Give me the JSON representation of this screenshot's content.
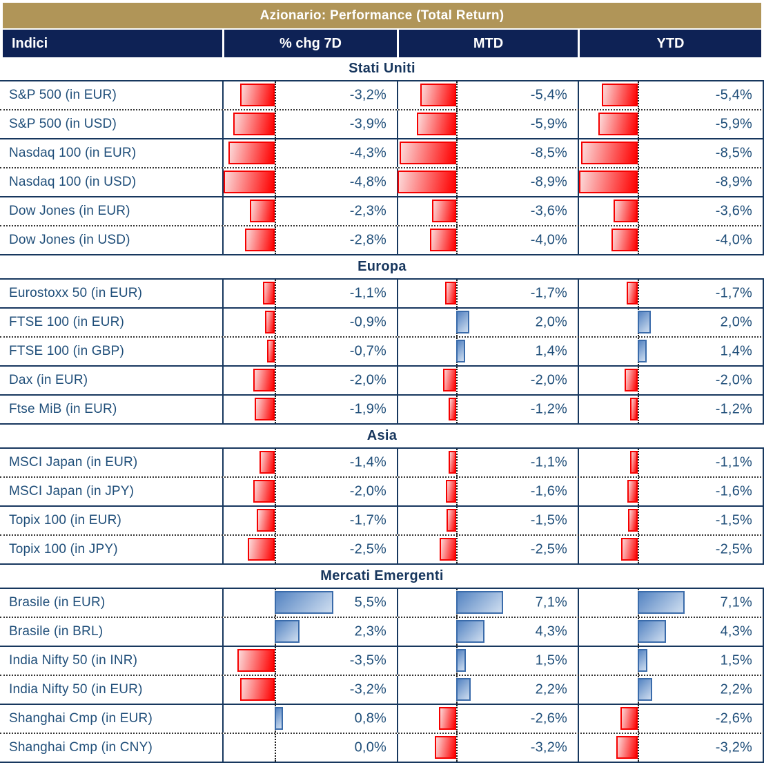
{
  "title": "Azionario: Performance (Total Return)",
  "columns": {
    "indici": "Indici",
    "chg7d": "% chg 7D",
    "mtd": "MTD",
    "ytd": "YTD"
  },
  "colors": {
    "gold_header": "#B09558",
    "navy_header_bg": "#0E2255",
    "grid_line_navy": "#17375E",
    "text_navy": "#1F4E79",
    "negative_bar": "#FE0000",
    "negative_bar_light": "#FCDADA",
    "positive_bar": "#5584C2",
    "positive_bar_light": "#CFDEF0"
  },
  "chart_data": {
    "type": "table",
    "title": "Azionario: Performance (Total Return)",
    "columns": [
      "Indici",
      "% chg 7D",
      "MTD",
      "YTD"
    ],
    "value_format": "percent, comma decimal separator; red bars = negative, blue bars = positive, drawn from dotted zero baseline",
    "sections": [
      {
        "title": "Stati Uniti",
        "rows": [
          {
            "label": "S&P 500 (in EUR)",
            "chg7d": -3.2,
            "chg7d_text": "-3,2%",
            "mtd": -5.4,
            "mtd_text": "-5,4%",
            "ytd": -5.4,
            "ytd_text": "-5,4%",
            "divider_after": "dotted"
          },
          {
            "label": "S&P 500 (in USD)",
            "chg7d": -3.9,
            "chg7d_text": "-3,9%",
            "mtd": -5.9,
            "mtd_text": "-5,9%",
            "ytd": -5.9,
            "ytd_text": "-5,9%",
            "divider_after": "solid"
          },
          {
            "label": "Nasdaq 100 (in EUR)",
            "chg7d": -4.3,
            "chg7d_text": "-4,3%",
            "mtd": -8.5,
            "mtd_text": "-8,5%",
            "ytd": -8.5,
            "ytd_text": "-8,5%",
            "divider_after": "dotted"
          },
          {
            "label": "Nasdaq 100 (in USD)",
            "chg7d": -4.8,
            "chg7d_text": "-4,8%",
            "mtd": -8.9,
            "mtd_text": "-8,9%",
            "ytd": -8.9,
            "ytd_text": "-8,9%",
            "divider_after": "solid"
          },
          {
            "label": "Dow Jones (in EUR)",
            "chg7d": -2.3,
            "chg7d_text": "-2,3%",
            "mtd": -3.6,
            "mtd_text": "-3,6%",
            "ytd": -3.6,
            "ytd_text": "-3,6%",
            "divider_after": "dotted"
          },
          {
            "label": "Dow Jones (in USD)",
            "chg7d": -2.8,
            "chg7d_text": "-2,8%",
            "mtd": -4.0,
            "mtd_text": "-4,0%",
            "ytd": -4.0,
            "ytd_text": "-4,0%",
            "divider_after": "solid"
          }
        ]
      },
      {
        "title": "Europa",
        "rows": [
          {
            "label": "Eurostoxx 50 (in EUR)",
            "chg7d": -1.1,
            "chg7d_text": "-1,1%",
            "mtd": -1.7,
            "mtd_text": "-1,7%",
            "ytd": -1.7,
            "ytd_text": "-1,7%",
            "divider_after": "solid"
          },
          {
            "label": "FTSE 100 (in EUR)",
            "chg7d": -0.9,
            "chg7d_text": "-0,9%",
            "mtd": 2.0,
            "mtd_text": "2,0%",
            "ytd": 2.0,
            "ytd_text": "2,0%",
            "divider_after": "dotted"
          },
          {
            "label": "FTSE 100 (in GBP)",
            "chg7d": -0.7,
            "chg7d_text": "-0,7%",
            "mtd": 1.4,
            "mtd_text": "1,4%",
            "ytd": 1.4,
            "ytd_text": "1,4%",
            "divider_after": "solid"
          },
          {
            "label": "Dax (in EUR)",
            "chg7d": -2.0,
            "chg7d_text": "-2,0%",
            "mtd": -2.0,
            "mtd_text": "-2,0%",
            "ytd": -2.0,
            "ytd_text": "-2,0%",
            "divider_after": "solid"
          },
          {
            "label": "Ftse MiB (in EUR)",
            "chg7d": -1.9,
            "chg7d_text": "-1,9%",
            "mtd": -1.2,
            "mtd_text": "-1,2%",
            "ytd": -1.2,
            "ytd_text": "-1,2%",
            "divider_after": "solid"
          }
        ]
      },
      {
        "title": "Asia",
        "rows": [
          {
            "label": "MSCI Japan (in EUR)",
            "chg7d": -1.4,
            "chg7d_text": "-1,4%",
            "mtd": -1.1,
            "mtd_text": "-1,1%",
            "ytd": -1.1,
            "ytd_text": "-1,1%",
            "divider_after": "dotted"
          },
          {
            "label": "MSCI Japan (in JPY)",
            "chg7d": -2.0,
            "chg7d_text": "-2,0%",
            "mtd": -1.6,
            "mtd_text": "-1,6%",
            "ytd": -1.6,
            "ytd_text": "-1,6%",
            "divider_after": "solid"
          },
          {
            "label": "Topix 100 (in EUR)",
            "chg7d": -1.7,
            "chg7d_text": "-1,7%",
            "mtd": -1.5,
            "mtd_text": "-1,5%",
            "ytd": -1.5,
            "ytd_text": "-1,5%",
            "divider_after": "dotted"
          },
          {
            "label": "Topix 100 (in JPY)",
            "chg7d": -2.5,
            "chg7d_text": "-2,5%",
            "mtd": -2.5,
            "mtd_text": "-2,5%",
            "ytd": -2.5,
            "ytd_text": "-2,5%",
            "divider_after": "solid"
          }
        ]
      },
      {
        "title": "Mercati Emergenti",
        "rows": [
          {
            "label": "Brasile (in EUR)",
            "chg7d": 5.5,
            "chg7d_text": "5,5%",
            "mtd": 7.1,
            "mtd_text": "7,1%",
            "ytd": 7.1,
            "ytd_text": "7,1%",
            "divider_after": "dotted"
          },
          {
            "label": "Brasile (in BRL)",
            "chg7d": 2.3,
            "chg7d_text": "2,3%",
            "mtd": 4.3,
            "mtd_text": "4,3%",
            "ytd": 4.3,
            "ytd_text": "4,3%",
            "divider_after": "solid"
          },
          {
            "label": "India Nifty 50 (in INR)",
            "chg7d": -3.5,
            "chg7d_text": "-3,5%",
            "mtd": 1.5,
            "mtd_text": "1,5%",
            "ytd": 1.5,
            "ytd_text": "1,5%",
            "divider_after": "dotted"
          },
          {
            "label": "India Nifty 50 (in EUR)",
            "chg7d": -3.2,
            "chg7d_text": "-3,2%",
            "mtd": 2.2,
            "mtd_text": "2,2%",
            "ytd": 2.2,
            "ytd_text": "2,2%",
            "divider_after": "solid"
          },
          {
            "label": "Shanghai Cmp (in EUR)",
            "chg7d": 0.8,
            "chg7d_text": "0,8%",
            "mtd": -2.6,
            "mtd_text": "-2,6%",
            "ytd": -2.6,
            "ytd_text": "-2,6%",
            "divider_after": "dotted"
          },
          {
            "label": "Shanghai Cmp (in CNY)",
            "chg7d": 0.0,
            "chg7d_text": "0,0%",
            "mtd": -3.2,
            "mtd_text": "-3,2%",
            "ytd": -3.2,
            "ytd_text": "-3,2%",
            "divider_after": "solid"
          }
        ]
      }
    ]
  }
}
